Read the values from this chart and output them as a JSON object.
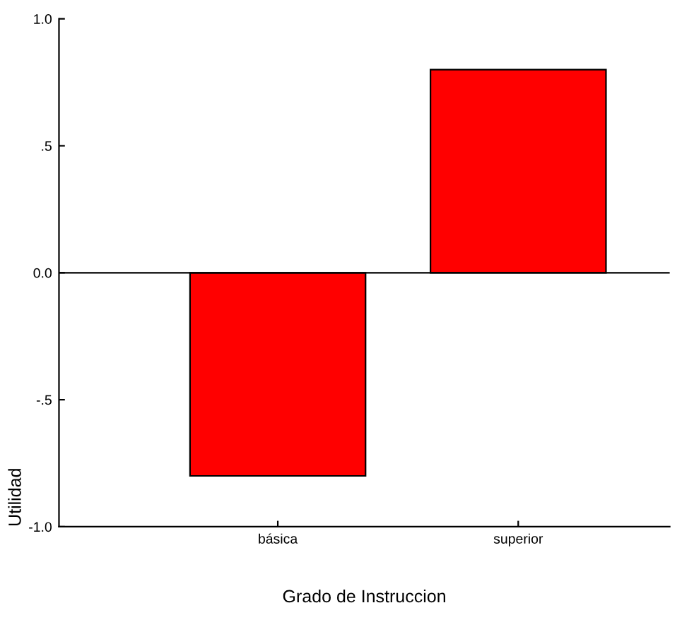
{
  "chart_data": {
    "type": "bar",
    "xlabel": "Grado de Instruccion",
    "ylabel": "Utilidad",
    "categories": [
      "básica",
      "superior"
    ],
    "values": [
      -0.8,
      0.8
    ],
    "color": "#ff0000",
    "ylim": [
      -1.0,
      1.0
    ],
    "yticks": [
      {
        "value": -1.0,
        "label": "-1.0"
      },
      {
        "value": -0.5,
        "label": "-.5"
      },
      {
        "value": 0.0,
        "label": "0.0"
      },
      {
        "value": 0.5,
        "label": ".5"
      },
      {
        "value": 1.0,
        "label": "1.0"
      }
    ],
    "ref_lines": [
      {
        "axis": "y",
        "value": 0,
        "color": "#000000"
      }
    ],
    "grid": false,
    "legend": false
  }
}
